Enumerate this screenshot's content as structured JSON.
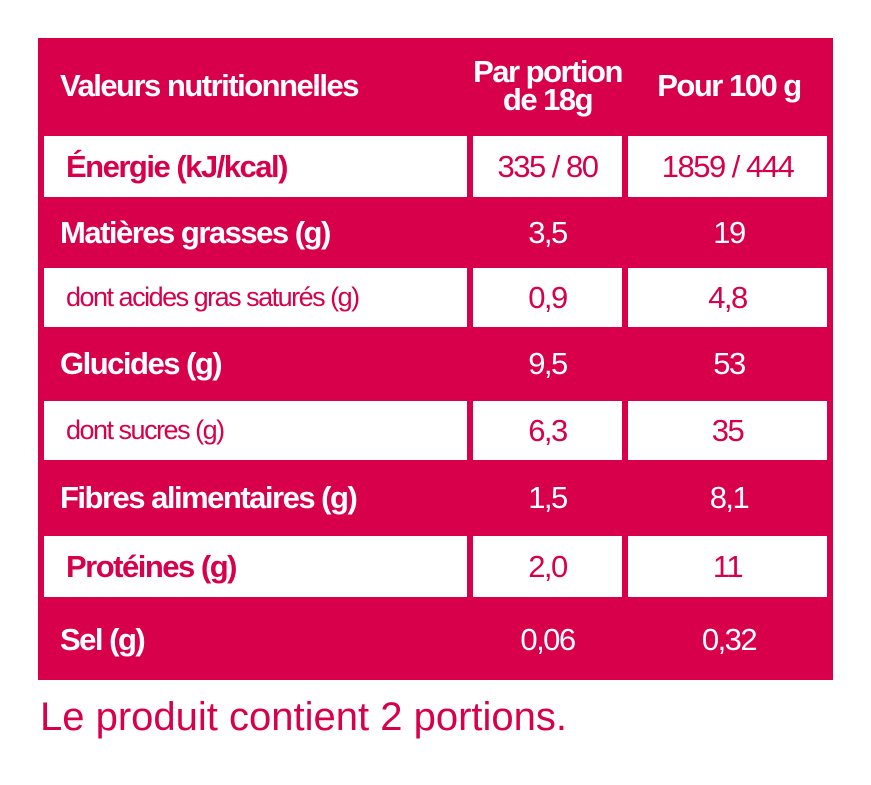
{
  "table": {
    "header": [
      "Valeurs nutritionnelles",
      [
        "Par portion",
        "de 18g"
      ],
      "Pour 100 g"
    ],
    "rows": [
      [
        "Énergie (kJ/kcal)",
        "335 / 80",
        "1859 / 444"
      ],
      [
        "Matières grasses (g)",
        "3,5",
        "19"
      ],
      [
        "dont acides gras saturés (g)",
        "0,9",
        "4,8"
      ],
      [
        "Glucides (g)",
        "9,5",
        "53"
      ],
      [
        "dont sucres (g)",
        "6,3",
        "35"
      ],
      [
        "Fibres alimentaires (g)",
        "1,5",
        "8,1"
      ],
      [
        "Protéines (g)",
        "2,0",
        "11"
      ],
      [
        "Sel (g)",
        "0,06",
        "0,32"
      ]
    ]
  },
  "footnote": "Le produit contient 2 portions."
}
